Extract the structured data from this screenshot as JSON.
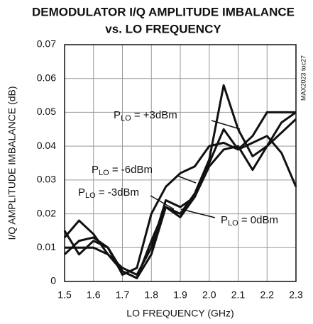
{
  "chart_data": {
    "type": "line",
    "title": [
      "DEMODULATOR I/Q AMPLITUDE IMBALANCE",
      "vs. LO FREQUENCY"
    ],
    "x_label": "LO FREQUENCY (GHz)",
    "y_label": "I/Q AMPLITUDE IMBALANCE (dB)",
    "side_note": "MAX2023 toc27",
    "x": [
      1.5,
      1.55,
      1.6,
      1.65,
      1.7,
      1.75,
      1.8,
      1.85,
      1.9,
      1.95,
      2.0,
      2.05,
      2.1,
      2.15,
      2.2,
      2.25,
      2.3
    ],
    "series": [
      {
        "color": "#111111",
        "values": [
          0.013,
          0.018,
          0.014,
          0.008,
          0.003,
          0.001,
          0.008,
          0.022,
          0.02,
          0.026,
          0.036,
          0.058,
          0.045,
          0.037,
          0.04,
          0.047,
          0.05
        ]
      },
      {
        "color": "#111111",
        "values": [
          0.008,
          0.012,
          0.013,
          0.01,
          0.002,
          0.004,
          0.02,
          0.028,
          0.032,
          0.034,
          0.04,
          0.041,
          0.039,
          0.041,
          0.043,
          0.038,
          0.028
        ]
      },
      {
        "color": "#111111",
        "values": [
          0.01,
          0.01,
          0.01,
          0.008,
          0.004,
          0.002,
          0.01,
          0.024,
          0.022,
          0.025,
          0.035,
          0.045,
          0.039,
          0.043,
          0.05,
          0.05,
          0.05
        ]
      },
      {
        "color": "#111111",
        "values": [
          0.015,
          0.008,
          0.012,
          0.01,
          0.003,
          0.001,
          0.012,
          0.022,
          0.019,
          0.025,
          0.034,
          0.039,
          0.04,
          0.033,
          0.04,
          0.044,
          0.048
        ]
      }
    ],
    "annotations": [
      {
        "symbol": "P",
        "subscript": "LO",
        "text": " = +3dBm"
      },
      {
        "symbol": "P",
        "subscript": "LO",
        "text": " = -6dBm"
      },
      {
        "symbol": "P",
        "subscript": "LO",
        "text": " = -3dBm"
      },
      {
        "symbol": "P",
        "subscript": "LO",
        "text": " = 0dBm"
      }
    ],
    "xlim": [
      1.5,
      2.3
    ],
    "xticks": [
      1.5,
      1.6,
      1.7,
      1.8,
      1.9,
      {
        "value": 2,
        "label": "2.0"
      },
      2.1,
      2.2,
      2.3
    ],
    "ylim": [
      0,
      0.07
    ],
    "yticks": [
      0,
      0.01,
      0.02,
      0.03,
      0.04,
      0.05,
      0.06,
      0.07
    ],
    "grid": true
  }
}
